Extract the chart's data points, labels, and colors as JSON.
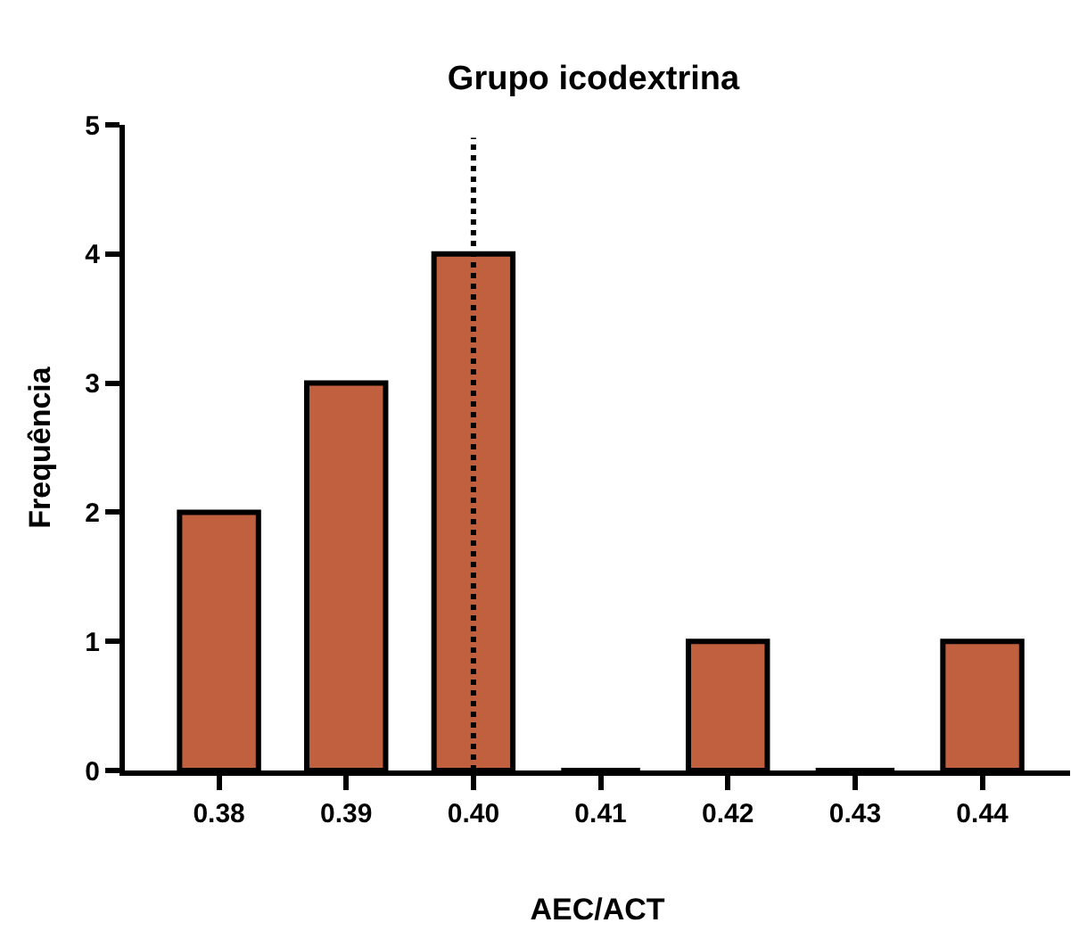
{
  "chart_data": {
    "type": "bar",
    "title": "Grupo icodextrina",
    "xlabel": "AEC/ACT",
    "ylabel": "Frequência",
    "x": [
      0.38,
      0.39,
      0.4,
      0.41,
      0.42,
      0.43,
      0.44
    ],
    "values": [
      2,
      3,
      4,
      0,
      1,
      0,
      1
    ],
    "color": "#c0603f",
    "xlim": [
      0.3726,
      0.4469
    ],
    "xticks": [
      {
        "value": 0.38,
        "label": "0.38"
      },
      {
        "value": 0.39,
        "label": "0.39"
      },
      {
        "value": 0.4,
        "label": "0.40"
      },
      {
        "value": 0.41,
        "label": "0.41"
      },
      {
        "value": 0.42,
        "label": "0.42"
      },
      {
        "value": 0.43,
        "label": "0.43"
      },
      {
        "value": 0.44,
        "label": "0.44"
      }
    ],
    "ylim": [
      0,
      5
    ],
    "yticks": [
      0,
      1,
      2,
      3,
      4,
      5
    ],
    "ref_lines": [
      {
        "axis": "x",
        "value": 0.4,
        "line_style": "dotted",
        "color": "#000000"
      }
    ],
    "tick_labels": "xy"
  }
}
